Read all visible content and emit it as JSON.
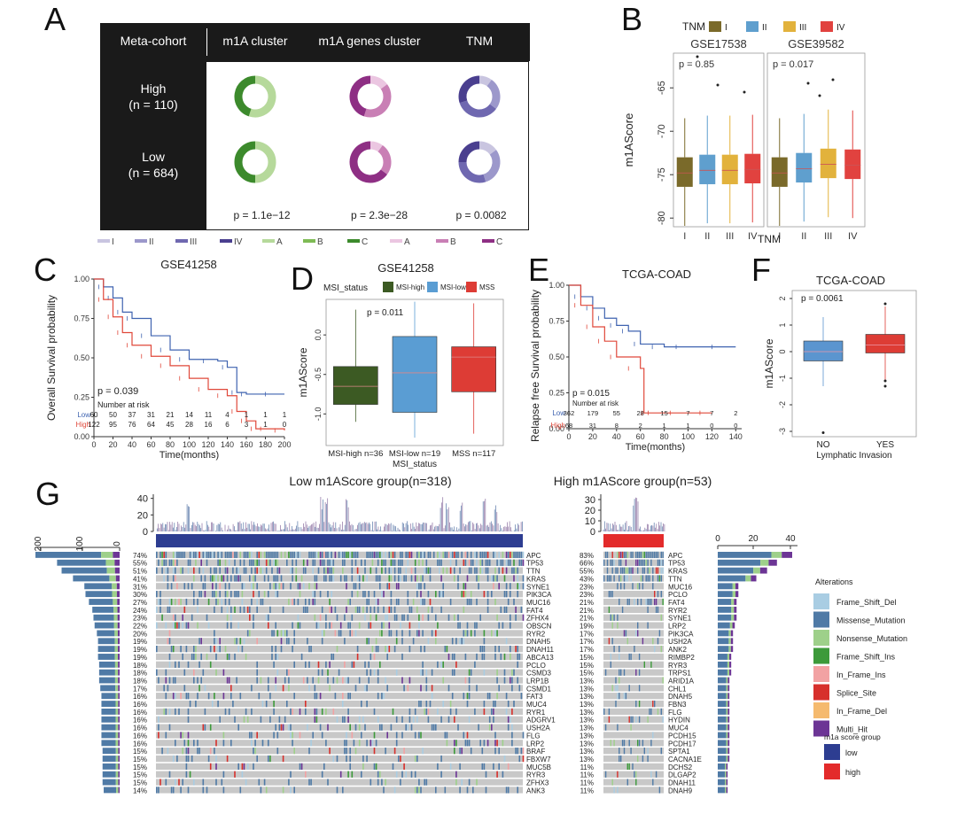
{
  "panels": {
    "A": {
      "label": "A",
      "header": [
        "Meta-cohort",
        "m1A cluster",
        "m1A genes cluster",
        "TNM"
      ],
      "rows": [
        {
          "name": "High",
          "n": "(n = 110)"
        },
        {
          "name": "Low",
          "n": "(n = 684)"
        }
      ],
      "pvalues": [
        "p = 1.1e−12",
        "p = 2.3e−28",
        "p = 0.0082"
      ],
      "legend": [
        {
          "label": "I",
          "color": "#c9c5e0"
        },
        {
          "label": "II",
          "color": "#9c98cb"
        },
        {
          "label": "III",
          "color": "#6f68b0"
        },
        {
          "label": "IV",
          "color": "#4a3f8f"
        },
        {
          "label": "A",
          "color": "#b6d99b"
        },
        {
          "label": "B",
          "color": "#7fbb55"
        },
        {
          "label": "C",
          "color": "#3c8a2c"
        },
        {
          "label": "A",
          "color": "#ebc6e1"
        },
        {
          "label": "B",
          "color": "#c97fb5"
        },
        {
          "label": "C",
          "color": "#8e2f84"
        }
      ],
      "donuts": [
        [
          [
            0.55,
            0.45
          ],
          [
            0.15,
            0.4,
            0.45
          ],
          [
            0.1,
            0.25,
            0.35,
            0.3
          ]
        ],
        [
          [
            0.5,
            0.5
          ],
          [
            0.1,
            0.25,
            0.65
          ],
          [
            0.15,
            0.3,
            0.3,
            0.25
          ]
        ]
      ]
    },
    "B": {
      "label": "B",
      "legend_title": "TNM",
      "legend": [
        "I",
        "II",
        "III",
        "IV"
      ],
      "facets": [
        "GSE17538",
        "GSE39582"
      ],
      "pvalues": [
        "p = 0.85",
        "p = 0.017"
      ],
      "ylabel": "m1AScore",
      "xlabel": "TNM",
      "yticks": [
        "-65",
        "-70",
        "-75",
        "-80"
      ]
    },
    "C": {
      "label": "C",
      "title": "GSE41258",
      "ylabel": "Overall Survival probability",
      "xlabel": "Time(months)",
      "pvalue": "p = 0.039",
      "risk_title": "Number at risk",
      "yticks": [
        "1.00",
        "0.75",
        "0.50",
        "0.25",
        "0.00"
      ],
      "xticks": [
        "0",
        "20",
        "40",
        "60",
        "80",
        "100",
        "120",
        "140",
        "160",
        "180",
        "200"
      ],
      "risk": [
        {
          "name": "Low",
          "values": [
            "60",
            "50",
            "37",
            "31",
            "21",
            "14",
            "11",
            "4",
            "1",
            "1",
            "1"
          ]
        },
        {
          "name": "High",
          "values": [
            "122",
            "95",
            "76",
            "64",
            "45",
            "28",
            "16",
            "6",
            "3",
            "1",
            "0"
          ]
        }
      ]
    },
    "D": {
      "label": "D",
      "title": "GSE41258",
      "legend_title": "MSI_status",
      "legend": [
        "MSI-high",
        "MSI-low",
        "MSS"
      ],
      "pvalue": "p = 0.011",
      "ylabel": "m1AScore",
      "xlabel": "MSI_status",
      "yticks": [
        "0.0",
        "-0.5",
        "-1.0"
      ],
      "categories": [
        "MSI-high n=36",
        "MSI-low n=19",
        "MSS n=117"
      ]
    },
    "E": {
      "label": "E",
      "title": "TCGA-COAD",
      "ylabel": "Relapse free Survival probability",
      "xlabel": "Time(months)",
      "pvalue": "p = 0.015",
      "risk_title": "Number at risk",
      "yticks": [
        "1.00",
        "0.75",
        "0.50",
        "0.25",
        "0.00"
      ],
      "xticks": [
        "0",
        "20",
        "40",
        "60",
        "80",
        "100",
        "120",
        "140"
      ],
      "risk": [
        {
          "name": "Low",
          "values": [
            "362",
            "179",
            "55",
            "28",
            "15",
            "7",
            "7",
            "2"
          ]
        },
        {
          "name": "High",
          "values": [
            "68",
            "31",
            "8",
            "2",
            "1",
            "1",
            "0",
            "0"
          ]
        }
      ]
    },
    "F": {
      "label": "F",
      "title": "TCGA-COAD",
      "pvalue": "p = 0.0061",
      "ylabel": "m1AScore",
      "xlabel": "Lymphatic Invasion",
      "yticks": [
        "2",
        "1",
        "0",
        "-1",
        "-2",
        "-3"
      ],
      "categories": [
        "NO",
        "YES"
      ]
    },
    "G": {
      "label": "G",
      "low_title": "Low m1AScore group(n=318)",
      "high_title": "High m1AScore group(n=53)",
      "low_yticks": [
        "40",
        "20",
        "0"
      ],
      "high_yticks": [
        "30",
        "20",
        "10",
        "0"
      ],
      "left_xticks": [
        "200",
        "100",
        "0"
      ],
      "right_xticks": [
        "0",
        "20",
        "40"
      ],
      "low_genes": [
        "APC",
        "TP53",
        "TTN",
        "KRAS",
        "SYNE1",
        "PIK3CA",
        "MUC16",
        "FAT4",
        "ZFHX4",
        "OBSCN",
        "RYR2",
        "DNAH5",
        "DNAH11",
        "ABCA13",
        "PCLO",
        "CSMD3",
        "LRP1B",
        "CSMD1",
        "FAT3",
        "MUC4",
        "RYR1",
        "ADGRV1",
        "USH2A",
        "FLG",
        "LRP2",
        "BRAF",
        "FBXW7",
        "MUC5B",
        "RYR3",
        "ZFHX3",
        "ANK3"
      ],
      "low_pcts": [
        "74%",
        "55%",
        "51%",
        "41%",
        "31%",
        "30%",
        "27%",
        "24%",
        "23%",
        "22%",
        "20%",
        "19%",
        "19%",
        "19%",
        "18%",
        "18%",
        "18%",
        "17%",
        "16%",
        "16%",
        "16%",
        "16%",
        "16%",
        "16%",
        "16%",
        "15%",
        "15%",
        "15%",
        "15%",
        "15%",
        "14%"
      ],
      "high_genes": [
        "APC",
        "TP53",
        "KRAS",
        "TTN",
        "MUC16",
        "PCLO",
        "FAT4",
        "RYR2",
        "SYNE1",
        "LRP2",
        "PIK3CA",
        "USH2A",
        "ANK2",
        "RIMBP2",
        "RYR3",
        "TRPS1",
        "ARID1A",
        "CHL1",
        "DNAH5",
        "FBN3",
        "FLG",
        "HYDIN",
        "MUC4",
        "PCDH15",
        "PCDH17",
        "SPTA1",
        "CACNA1E",
        "DCHS2",
        "DLGAP2",
        "DNAH11",
        "DNAH9"
      ],
      "high_pcts": [
        "83%",
        "66%",
        "55%",
        "43%",
        "23%",
        "23%",
        "21%",
        "21%",
        "21%",
        "19%",
        "17%",
        "17%",
        "17%",
        "15%",
        "15%",
        "15%",
        "13%",
        "13%",
        "13%",
        "13%",
        "13%",
        "13%",
        "13%",
        "13%",
        "13%",
        "13%",
        "13%",
        "11%",
        "11%",
        "11%",
        "11%"
      ],
      "alterations_title": "Alterations",
      "alterations": [
        {
          "label": "Frame_Shift_Del",
          "color": "#a9cde3"
        },
        {
          "label": "Missense_Mutation",
          "color": "#4f7aa6"
        },
        {
          "label": "Nonsense_Mutation",
          "color": "#9ed08a"
        },
        {
          "label": "Frame_Shift_Ins",
          "color": "#3d9a3a"
        },
        {
          "label": "In_Frame_Ins",
          "color": "#f2a2a3"
        },
        {
          "label": "Splice_Site",
          "color": "#d7302c"
        },
        {
          "label": "In_Frame_Del",
          "color": "#f5ba6e"
        },
        {
          "label": "Multi_Hit",
          "color": "#6c3595"
        }
      ],
      "group_title": "m1a score group",
      "groups": [
        {
          "label": "low",
          "color": "#2d3d91"
        },
        {
          "label": "high",
          "color": "#e32b2b"
        }
      ]
    }
  },
  "chart_data": [
    {
      "type": "pie",
      "title": "m1A cluster / m1A genes cluster / TNM by meta-cohort",
      "categories": [
        "High",
        "Low"
      ],
      "pvalues": [
        "1.1e-12",
        "2.3e-28",
        "0.0082"
      ]
    },
    {
      "type": "box",
      "title": "GSE17538 / GSE39582",
      "categories": [
        "I",
        "II",
        "III",
        "IV"
      ],
      "ylabel": "m1AScore",
      "ylim": [
        -81,
        -61
      ],
      "series": [
        {
          "name": "GSE17538",
          "medians": [
            -74.8,
            -74.5,
            -74.5,
            -74.4
          ]
        },
        {
          "name": "GSE39582",
          "medians": [
            -74.8,
            -74.3,
            -73.8,
            -73.9
          ]
        }
      ]
    },
    {
      "type": "line",
      "title": "GSE41258",
      "xlabel": "Time(months)",
      "ylabel": "Overall Survival probability",
      "xlim": [
        0,
        200
      ],
      "ylim": [
        0,
        1
      ],
      "series": [
        {
          "name": "Low",
          "x": [
            0,
            10,
            20,
            30,
            40,
            60,
            80,
            100,
            130,
            140,
            150,
            160,
            200
          ],
          "y": [
            1.0,
            0.95,
            0.88,
            0.79,
            0.75,
            0.64,
            0.55,
            0.49,
            0.48,
            0.44,
            0.28,
            0.27,
            0.27
          ]
        },
        {
          "name": "High",
          "x": [
            0,
            10,
            20,
            30,
            40,
            60,
            80,
            100,
            120,
            140,
            150,
            160,
            170,
            180,
            200
          ],
          "y": [
            1.0,
            0.87,
            0.76,
            0.66,
            0.58,
            0.51,
            0.45,
            0.37,
            0.3,
            0.26,
            0.16,
            0.1,
            0.05,
            0.05,
            0.04
          ]
        }
      ]
    },
    {
      "type": "box",
      "title": "GSE41258",
      "categories": [
        "MSI-high n=36",
        "MSI-low n=19",
        "MSS n=117"
      ],
      "ylabel": "m1AScore",
      "ylim": [
        -1.4,
        0.4
      ],
      "medians": [
        -0.65,
        -0.48,
        -0.28
      ]
    },
    {
      "type": "line",
      "title": "TCGA-COAD",
      "xlabel": "Time(months)",
      "ylabel": "Relapse free Survival probability",
      "xlim": [
        0,
        140
      ],
      "ylim": [
        0,
        1
      ],
      "series": [
        {
          "name": "Low",
          "x": [
            0,
            10,
            20,
            30,
            40,
            50,
            60,
            80,
            100,
            140
          ],
          "y": [
            1.0,
            0.92,
            0.84,
            0.77,
            0.72,
            0.68,
            0.59,
            0.57,
            0.57,
            0.57
          ]
        },
        {
          "name": "High",
          "x": [
            0,
            10,
            20,
            30,
            40,
            60,
            63,
            70,
            100,
            120
          ],
          "y": [
            1.0,
            0.86,
            0.71,
            0.61,
            0.5,
            0.42,
            0.11,
            0.11,
            0.11,
            0.11
          ]
        }
      ]
    },
    {
      "type": "box",
      "title": "TCGA-COAD",
      "categories": [
        "NO",
        "YES"
      ],
      "ylabel": "m1AScore",
      "xlabel": "Lymphatic Invasion",
      "ylim": [
        -3.2,
        2.3
      ],
      "medians": [
        0.0,
        0.25
      ]
    },
    {
      "type": "bar",
      "title": "Low m1AScore group(n=318)",
      "categories": [
        "APC",
        "TP53",
        "TTN",
        "KRAS",
        "SYNE1",
        "PIK3CA",
        "MUC16",
        "FAT4",
        "ZFHX4",
        "OBSCN",
        "RYR2",
        "DNAH5",
        "DNAH11",
        "ABCA13",
        "PCLO",
        "CSMD3",
        "LRP1B",
        "CSMD1",
        "FAT3",
        "MUC4",
        "RYR1",
        "ADGRV1",
        "USH2A",
        "FLG",
        "LRP2",
        "BRAF",
        "FBXW7",
        "MUC5B",
        "RYR3",
        "ZFHX3",
        "ANK3"
      ],
      "values": [
        74,
        55,
        51,
        41,
        31,
        30,
        27,
        24,
        23,
        22,
        20,
        19,
        19,
        19,
        18,
        18,
        18,
        17,
        16,
        16,
        16,
        16,
        16,
        16,
        16,
        15,
        15,
        15,
        15,
        15,
        14
      ]
    },
    {
      "type": "bar",
      "title": "High m1AScore group(n=53)",
      "categories": [
        "APC",
        "TP53",
        "KRAS",
        "TTN",
        "MUC16",
        "PCLO",
        "FAT4",
        "RYR2",
        "SYNE1",
        "LRP2",
        "PIK3CA",
        "USH2A",
        "ANK2",
        "RIMBP2",
        "RYR3",
        "TRPS1",
        "ARID1A",
        "CHL1",
        "DNAH5",
        "FBN3",
        "FLG",
        "HYDIN",
        "MUC4",
        "PCDH15",
        "PCDH17",
        "SPTA1",
        "CACNA1E",
        "DCHS2",
        "DLGAP2",
        "DNAH11",
        "DNAH9"
      ],
      "values": [
        83,
        66,
        55,
        43,
        23,
        23,
        21,
        21,
        21,
        19,
        17,
        17,
        17,
        15,
        15,
        15,
        13,
        13,
        13,
        13,
        13,
        13,
        13,
        13,
        13,
        13,
        13,
        11,
        11,
        11,
        11
      ]
    }
  ]
}
